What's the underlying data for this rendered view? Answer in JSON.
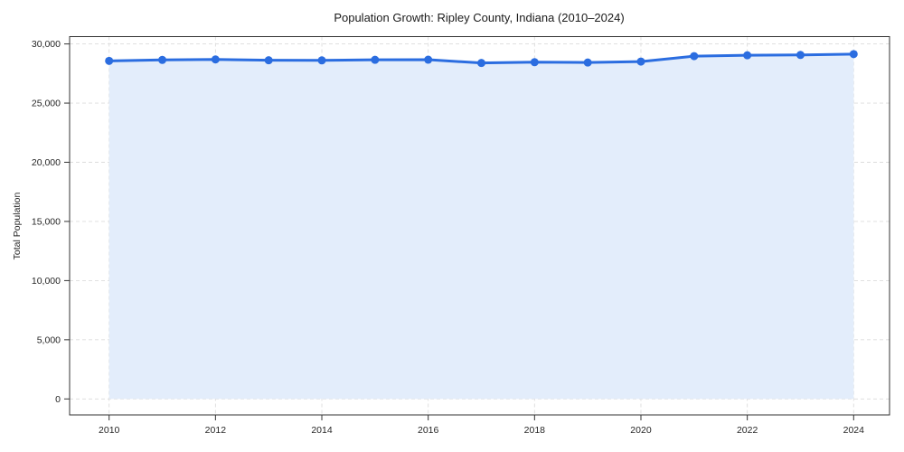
{
  "chart_data": {
    "type": "area",
    "title": "Population Growth: Ripley County, Indiana (2010–2024)",
    "xlabel": "",
    "ylabel": "Total Population",
    "x": [
      2010,
      2011,
      2012,
      2013,
      2014,
      2015,
      2016,
      2017,
      2018,
      2019,
      2020,
      2021,
      2022,
      2023,
      2024
    ],
    "values": [
      28570,
      28650,
      28690,
      28620,
      28610,
      28660,
      28670,
      28390,
      28460,
      28430,
      28510,
      28970,
      29040,
      29070,
      29140
    ],
    "ylim": [
      0,
      30000
    ],
    "yticks": [
      0,
      5000,
      10000,
      15000,
      20000,
      25000,
      30000
    ],
    "ytick_labels": [
      "0",
      "5,000",
      "10,000",
      "15,000",
      "20,000",
      "25,000",
      "30,000"
    ],
    "xticks": [
      2010,
      2012,
      2014,
      2016,
      2018,
      2020,
      2022,
      2024
    ],
    "xtick_labels": [
      "2010",
      "2012",
      "2014",
      "2016",
      "2018",
      "2020",
      "2022",
      "2024"
    ],
    "grid": true,
    "legend": "none",
    "colors": {
      "line": "#2b6de0",
      "marker": "#2b6de0",
      "fill": "#e3edfb",
      "grid": "#dcdcdc",
      "axis": "#333333",
      "text": "#262626",
      "title": "#1a1a1a"
    }
  }
}
